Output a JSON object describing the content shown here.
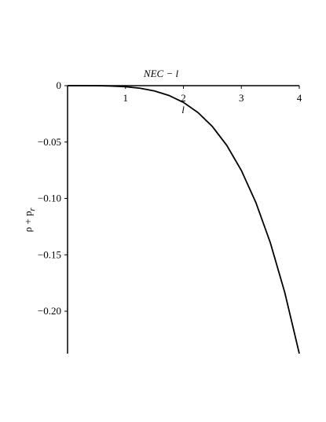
{
  "chart_data": {
    "type": "line",
    "title": "NEC − l",
    "x_label": "l",
    "y_label": "ρ + p",
    "y_label_subscript": "r",
    "x": [
      0,
      0.25,
      0.5,
      0.75,
      1,
      1.25,
      1.5,
      1.75,
      2,
      2.25,
      2.5,
      2.75,
      3,
      3.25,
      3.5,
      3.75,
      4
    ],
    "series": [
      {
        "color": "#000000",
        "values": [
          0,
          -3.6e-06,
          -5.8e-05,
          -0.000294,
          -0.000928,
          -0.002266,
          -0.004698,
          -0.008704,
          -0.014848,
          -0.023785,
          -0.03625,
          -0.053072,
          -0.075168,
          -0.103565,
          -0.139256,
          -0.183512,
          -0.237568
        ]
      }
    ],
    "xlim": [
      0,
      4
    ],
    "ylim": [
      -0.2376,
      0
    ],
    "xticks": [
      1,
      2,
      3,
      4
    ],
    "yticks": [
      0,
      {
        "value": -0.05,
        "label": "−0.05"
      },
      {
        "value": -0.1,
        "label": "−0.10"
      },
      {
        "value": -0.15,
        "label": "−0.15"
      },
      {
        "value": -0.2,
        "label": "−0.20"
      }
    ]
  }
}
